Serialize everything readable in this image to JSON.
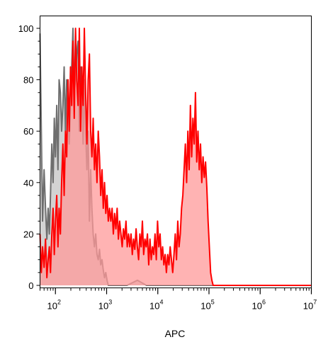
{
  "chart_data": {
    "type": "area",
    "xlabel": "APC",
    "ylabel": "",
    "x_scale": "log",
    "xlim": [
      50,
      10000000
    ],
    "ylim": [
      0,
      100
    ],
    "y_ticks": [
      0,
      20,
      40,
      60,
      80,
      100
    ],
    "x_ticks": [
      {
        "value": 100,
        "base": "10",
        "exp": "2"
      },
      {
        "value": 1000,
        "base": "10",
        "exp": "3"
      },
      {
        "value": 10000,
        "base": "10",
        "exp": "4"
      },
      {
        "value": 100000,
        "base": "10",
        "exp": "5"
      },
      {
        "value": 1000000,
        "base": "10",
        "exp": "6"
      },
      {
        "value": 10000000,
        "base": "10",
        "exp": "7"
      }
    ],
    "grid": false,
    "series": [
      {
        "fill": "#d3d3d3",
        "stroke": "#6e6e6e",
        "points": [
          [
            50,
            98
          ],
          [
            53,
            60
          ],
          [
            56,
            25
          ],
          [
            60,
            45
          ],
          [
            64,
            30
          ],
          [
            68,
            18
          ],
          [
            72,
            30
          ],
          [
            76,
            20
          ],
          [
            80,
            35
          ],
          [
            85,
            55
          ],
          [
            90,
            40
          ],
          [
            95,
            65
          ],
          [
            100,
            50
          ],
          [
            106,
            70
          ],
          [
            112,
            45
          ],
          [
            118,
            80
          ],
          [
            125,
            75
          ],
          [
            132,
            60
          ],
          [
            140,
            70
          ],
          [
            148,
            85
          ],
          [
            157,
            60
          ],
          [
            166,
            80
          ],
          [
            176,
            75
          ],
          [
            186,
            55
          ],
          [
            197,
            70
          ],
          [
            208,
            85
          ],
          [
            220,
            100
          ],
          [
            233,
            75
          ],
          [
            247,
            80
          ],
          [
            261,
            90
          ],
          [
            277,
            95
          ],
          [
            293,
            60
          ],
          [
            310,
            85
          ],
          [
            328,
            78
          ],
          [
            347,
            55
          ],
          [
            367,
            80
          ],
          [
            389,
            60
          ],
          [
            412,
            45
          ],
          [
            436,
            60
          ],
          [
            461,
            25
          ],
          [
            488,
            45
          ],
          [
            516,
            30
          ],
          [
            546,
            20
          ],
          [
            578,
            15
          ],
          [
            612,
            20
          ],
          [
            648,
            12
          ],
          [
            686,
            10
          ],
          [
            726,
            14
          ],
          [
            768,
            8
          ],
          [
            813,
            10
          ],
          [
            860,
            6
          ],
          [
            910,
            3
          ],
          [
            963,
            5
          ],
          [
            1019,
            2
          ],
          [
            1078,
            0
          ],
          [
            1500,
            0
          ],
          [
            2500,
            0
          ],
          [
            4000,
            2
          ],
          [
            6000,
            0
          ],
          [
            10000000,
            0
          ]
        ]
      },
      {
        "fill": "#ff9999",
        "stroke": "#ff0000",
        "points": [
          [
            50,
            20
          ],
          [
            53,
            5
          ],
          [
            56,
            15
          ],
          [
            60,
            7
          ],
          [
            64,
            18
          ],
          [
            68,
            3
          ],
          [
            72,
            10
          ],
          [
            76,
            15
          ],
          [
            80,
            5
          ],
          [
            85,
            20
          ],
          [
            90,
            30
          ],
          [
            95,
            12
          ],
          [
            100,
            25
          ],
          [
            106,
            35
          ],
          [
            112,
            15
          ],
          [
            118,
            30
          ],
          [
            125,
            20
          ],
          [
            132,
            40
          ],
          [
            140,
            55
          ],
          [
            148,
            35
          ],
          [
            157,
            60
          ],
          [
            166,
            50
          ],
          [
            176,
            80
          ],
          [
            186,
            60
          ],
          [
            197,
            85
          ],
          [
            208,
            70
          ],
          [
            220,
            95
          ],
          [
            233,
            65
          ],
          [
            247,
            100
          ],
          [
            261,
            80
          ],
          [
            277,
            70
          ],
          [
            293,
            100
          ],
          [
            310,
            60
          ],
          [
            328,
            85
          ],
          [
            347,
            70
          ],
          [
            367,
            100
          ],
          [
            389,
            75
          ],
          [
            412,
            55
          ],
          [
            436,
            80
          ],
          [
            461,
            90
          ],
          [
            488,
            60
          ],
          [
            516,
            50
          ],
          [
            546,
            65
          ],
          [
            578,
            45
          ],
          [
            612,
            55
          ],
          [
            648,
            40
          ],
          [
            686,
            60
          ],
          [
            726,
            50
          ],
          [
            768,
            35
          ],
          [
            813,
            45
          ],
          [
            860,
            30
          ],
          [
            910,
            40
          ],
          [
            963,
            28
          ],
          [
            1019,
            35
          ],
          [
            1078,
            25
          ],
          [
            1141,
            30
          ],
          [
            1208,
            25
          ],
          [
            1279,
            30
          ],
          [
            1353,
            20
          ],
          [
            1433,
            28
          ],
          [
            1516,
            22
          ],
          [
            1605,
            30
          ],
          [
            1699,
            18
          ],
          [
            1798,
            25
          ],
          [
            1903,
            20
          ],
          [
            2014,
            15
          ],
          [
            2132,
            22
          ],
          [
            2257,
            18
          ],
          [
            2389,
            25
          ],
          [
            2528,
            15
          ],
          [
            2676,
            20
          ],
          [
            2833,
            15
          ],
          [
            2998,
            20
          ],
          [
            3174,
            12
          ],
          [
            3359,
            18
          ],
          [
            3556,
            14
          ],
          [
            3764,
            22
          ],
          [
            3984,
            15
          ],
          [
            4217,
            10
          ],
          [
            4463,
            20
          ],
          [
            4724,
            15
          ],
          [
            5000,
            25
          ],
          [
            5293,
            12
          ],
          [
            5602,
            18
          ],
          [
            5930,
            15
          ],
          [
            6276,
            20
          ],
          [
            6643,
            8
          ],
          [
            7032,
            18
          ],
          [
            7443,
            10
          ],
          [
            7878,
            15
          ],
          [
            8339,
            12
          ],
          [
            8826,
            20
          ],
          [
            9343,
            10
          ],
          [
            9889,
            25
          ],
          [
            10467,
            15
          ],
          [
            11079,
            20
          ],
          [
            11727,
            10
          ],
          [
            12413,
            15
          ],
          [
            13139,
            8
          ],
          [
            13907,
            12
          ],
          [
            14720,
            5
          ],
          [
            15581,
            12
          ],
          [
            16492,
            8
          ],
          [
            17457,
            15
          ],
          [
            18478,
            10
          ],
          [
            19559,
            5
          ],
          [
            20703,
            12
          ],
          [
            21914,
            20
          ],
          [
            23196,
            10
          ],
          [
            24552,
            25
          ],
          [
            25988,
            15
          ],
          [
            27508,
            20
          ],
          [
            29117,
            30
          ],
          [
            30820,
            35
          ],
          [
            32623,
            45
          ],
          [
            34531,
            55
          ],
          [
            36550,
            40
          ],
          [
            38688,
            60
          ],
          [
            40951,
            45
          ],
          [
            43346,
            70
          ],
          [
            45881,
            50
          ],
          [
            48565,
            65
          ],
          [
            51405,
            55
          ],
          [
            54412,
            75
          ],
          [
            57594,
            48
          ],
          [
            60963,
            60
          ],
          [
            64528,
            45
          ],
          [
            68302,
            55
          ],
          [
            72297,
            40
          ],
          [
            76526,
            50
          ],
          [
            81002,
            42
          ],
          [
            85740,
            48
          ],
          [
            90754,
            38
          ],
          [
            96062,
            25
          ],
          [
            101680,
            15
          ],
          [
            107627,
            5
          ],
          [
            113922,
            2
          ],
          [
            120585,
            0
          ],
          [
            150000,
            0
          ],
          [
            10000000,
            0
          ]
        ]
      }
    ]
  }
}
